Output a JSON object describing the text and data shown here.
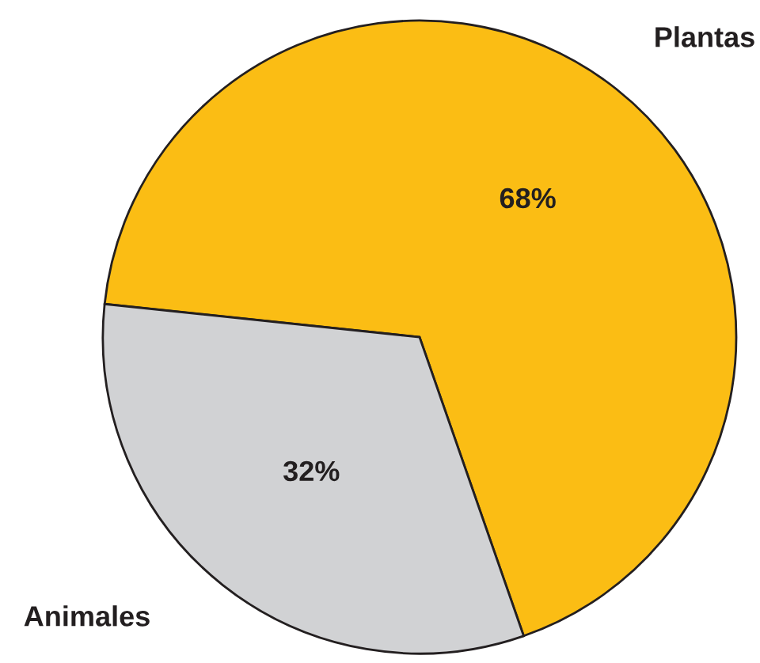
{
  "chart_data": {
    "type": "pie",
    "categories": [
      "Plantas",
      "Animales"
    ],
    "values": [
      68,
      32
    ],
    "colors": [
      "#fbbd14",
      "#d1d2d4"
    ],
    "value_labels": [
      "68%",
      "32%"
    ]
  }
}
